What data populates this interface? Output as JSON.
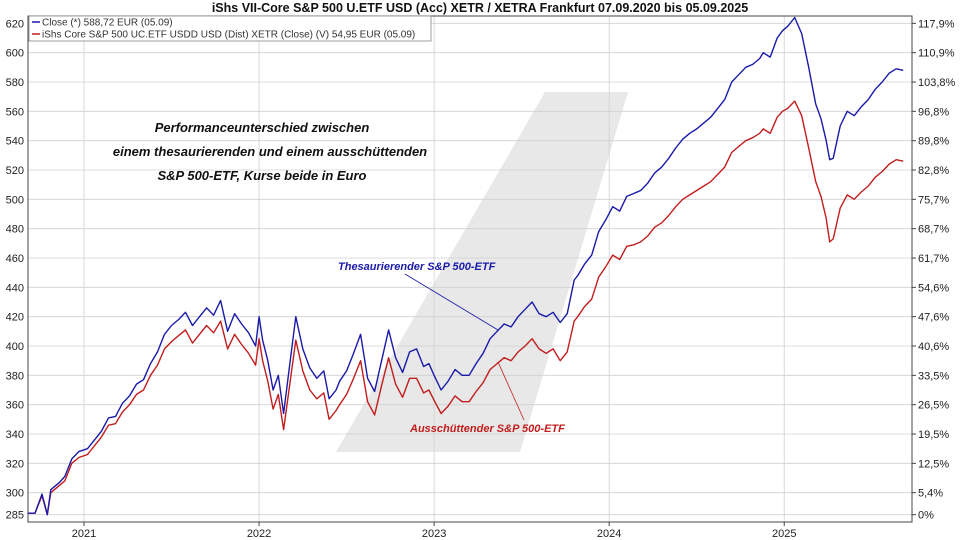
{
  "chart_data": {
    "type": "line",
    "title": "iShs VII-Core S&P 500 U.ETF USD (Acc) XETR / XETRA Frankfurt 07.09.2020 bis 05.09.2025",
    "x_tick_labels": [
      "2021",
      "2022",
      "2023",
      "2024",
      "2025"
    ],
    "y_left_ticks": [
      285,
      300,
      320,
      340,
      360,
      380,
      400,
      420,
      440,
      460,
      480,
      500,
      520,
      540,
      560,
      580,
      600,
      620
    ],
    "y_right_ticks": [
      "0%",
      "5,4%",
      "12,5%",
      "19,5%",
      "26,5%",
      "33,5%",
      "40,6%",
      "47,6%",
      "54,6%",
      "61,7%",
      "68,7%",
      "75,7%",
      "82,8%",
      "89,8%",
      "96,8%",
      "103,8%",
      "110,9%",
      "117,9%"
    ],
    "ylim": [
      280,
      625
    ],
    "xlim": [
      2020.68,
      2025.73
    ],
    "grid": true,
    "legend_position": "top-left",
    "colors": {
      "accumulating": "#1a1aa8",
      "distributing": "#c21d1d",
      "axis": "#444444",
      "grid": "#d0d0d0",
      "watermark": "#e6e6e6"
    },
    "annotation_main": [
      "Performanceunterschied zwischen",
      "einem thesaurierenden und einem ausschüttenden",
      "S&P 500-ETF, Kurse beide in Euro"
    ],
    "series": [
      {
        "name": "Close (*) 588,72 EUR (05.09)",
        "label": "Thesaurierender S&P 500-ETF",
        "x": [
          2020.68,
          2020.72,
          2020.76,
          2020.79,
          2020.81,
          2020.84,
          2020.86,
          2020.89,
          2020.93,
          2020.97,
          2021.02,
          2021.06,
          2021.1,
          2021.14,
          2021.18,
          2021.22,
          2021.26,
          2021.3,
          2021.34,
          2021.38,
          2021.42,
          2021.46,
          2021.5,
          2021.54,
          2021.58,
          2021.62,
          2021.66,
          2021.7,
          2021.74,
          2021.78,
          2021.82,
          2021.86,
          2021.9,
          2021.94,
          2021.98,
          2022.0,
          2022.02,
          2022.05,
          2022.08,
          2022.11,
          2022.14,
          2022.18,
          2022.21,
          2022.25,
          2022.29,
          2022.33,
          2022.37,
          2022.4,
          2022.44,
          2022.46,
          2022.5,
          2022.54,
          2022.58,
          2022.62,
          2022.66,
          2022.7,
          2022.74,
          2022.78,
          2022.82,
          2022.86,
          2022.9,
          2022.94,
          2022.97,
          2023.0,
          2023.04,
          2023.08,
          2023.12,
          2023.16,
          2023.2,
          2023.24,
          2023.28,
          2023.32,
          2023.36,
          2023.4,
          2023.44,
          2023.48,
          2023.52,
          2023.56,
          2023.6,
          2023.64,
          2023.68,
          2023.72,
          2023.76,
          2023.8,
          2023.82,
          2023.86,
          2023.9,
          2023.94,
          2023.98,
          2024.02,
          2024.06,
          2024.1,
          2024.14,
          2024.18,
          2024.22,
          2024.26,
          2024.3,
          2024.34,
          2024.38,
          2024.42,
          2024.46,
          2024.5,
          2024.54,
          2024.58,
          2024.62,
          2024.66,
          2024.7,
          2024.74,
          2024.78,
          2024.82,
          2024.86,
          2024.88,
          2024.92,
          2024.96,
          2024.99,
          2025.02,
          2025.06,
          2025.1,
          2025.14,
          2025.18,
          2025.21,
          2025.24,
          2025.26,
          2025.28,
          2025.32,
          2025.36,
          2025.4,
          2025.44,
          2025.48,
          2025.52,
          2025.56,
          2025.6,
          2025.64,
          2025.68
        ],
        "values": [
          286,
          286,
          299,
          285,
          302,
          305,
          307,
          311,
          323,
          328,
          330,
          336,
          342,
          351,
          352,
          361,
          366,
          374,
          377,
          388,
          396,
          408,
          414,
          418,
          423,
          414,
          420,
          426,
          421,
          431,
          410,
          422,
          415,
          409,
          400,
          420,
          404,
          390,
          370,
          380,
          354,
          392,
          420,
          398,
          385,
          378,
          383,
          364,
          370,
          376,
          383,
          395,
          408,
          378,
          369,
          390,
          411,
          392,
          382,
          396,
          398,
          386,
          388,
          380,
          370,
          376,
          384,
          380,
          380,
          388,
          395,
          405,
          410,
          415,
          413,
          420,
          425,
          430,
          422,
          420,
          423,
          416,
          422,
          445,
          448,
          456,
          462,
          478,
          486,
          495,
          492,
          502,
          504,
          506,
          511,
          518,
          522,
          528,
          535,
          541,
          545,
          548,
          552,
          556,
          562,
          568,
          580,
          585,
          590,
          592,
          596,
          600,
          597,
          610,
          615,
          618,
          624,
          613,
          590,
          565,
          555,
          540,
          527,
          528,
          550,
          560,
          557,
          563,
          568,
          575,
          580,
          586,
          589,
          588
        ]
      },
      {
        "name": "iShs Core S&P 500 UC.ETF USDD USD (Dist) XETR (Close) (V) 54,95 EUR (05.09)",
        "label": "Ausschüttender S&P 500-ETF",
        "x": [
          2020.68,
          2020.72,
          2020.76,
          2020.79,
          2020.81,
          2020.84,
          2020.86,
          2020.89,
          2020.93,
          2020.97,
          2021.02,
          2021.06,
          2021.1,
          2021.14,
          2021.18,
          2021.22,
          2021.26,
          2021.3,
          2021.34,
          2021.38,
          2021.42,
          2021.46,
          2021.5,
          2021.54,
          2021.58,
          2021.62,
          2021.66,
          2021.7,
          2021.74,
          2021.78,
          2021.82,
          2021.86,
          2021.9,
          2021.94,
          2021.98,
          2022.0,
          2022.02,
          2022.05,
          2022.08,
          2022.11,
          2022.14,
          2022.18,
          2022.21,
          2022.25,
          2022.29,
          2022.33,
          2022.37,
          2022.4,
          2022.44,
          2022.46,
          2022.5,
          2022.54,
          2022.58,
          2022.62,
          2022.66,
          2022.7,
          2022.74,
          2022.78,
          2022.82,
          2022.86,
          2022.9,
          2022.94,
          2022.97,
          2023.0,
          2023.04,
          2023.08,
          2023.12,
          2023.16,
          2023.2,
          2023.24,
          2023.28,
          2023.32,
          2023.36,
          2023.4,
          2023.44,
          2023.48,
          2023.52,
          2023.56,
          2023.6,
          2023.64,
          2023.68,
          2023.72,
          2023.76,
          2023.8,
          2023.82,
          2023.86,
          2023.9,
          2023.94,
          2023.98,
          2024.02,
          2024.06,
          2024.1,
          2024.14,
          2024.18,
          2024.22,
          2024.26,
          2024.3,
          2024.34,
          2024.38,
          2024.42,
          2024.46,
          2024.5,
          2024.54,
          2024.58,
          2024.62,
          2024.66,
          2024.7,
          2024.74,
          2024.78,
          2024.82,
          2024.86,
          2024.88,
          2024.92,
          2024.96,
          2024.99,
          2025.02,
          2025.06,
          2025.1,
          2025.14,
          2025.18,
          2025.21,
          2025.24,
          2025.26,
          2025.28,
          2025.32,
          2025.36,
          2025.4,
          2025.44,
          2025.48,
          2025.52,
          2025.56,
          2025.6,
          2025.64,
          2025.68
        ],
        "values": [
          286,
          286,
          298,
          285,
          300,
          303,
          305,
          308,
          320,
          324,
          326,
          332,
          338,
          346,
          347,
          355,
          360,
          367,
          370,
          380,
          387,
          398,
          403,
          407,
          411,
          402,
          408,
          414,
          409,
          417,
          398,
          408,
          401,
          395,
          387,
          405,
          390,
          376,
          357,
          367,
          343,
          378,
          404,
          383,
          370,
          364,
          368,
          350,
          356,
          360,
          367,
          378,
          390,
          362,
          353,
          373,
          392,
          374,
          365,
          378,
          378,
          368,
          370,
          363,
          354,
          359,
          366,
          362,
          362,
          369,
          375,
          384,
          388,
          392,
          390,
          396,
          400,
          405,
          398,
          395,
          398,
          390,
          396,
          417,
          420,
          427,
          432,
          447,
          454,
          462,
          459,
          468,
          469,
          471,
          475,
          481,
          484,
          489,
          495,
          500,
          503,
          506,
          509,
          512,
          517,
          522,
          532,
          536,
          540,
          542,
          545,
          548,
          545,
          556,
          560,
          562,
          567,
          557,
          535,
          512,
          502,
          487,
          471,
          473,
          494,
          503,
          500,
          505,
          509,
          515,
          519,
          524,
          527,
          526
        ]
      }
    ]
  }
}
